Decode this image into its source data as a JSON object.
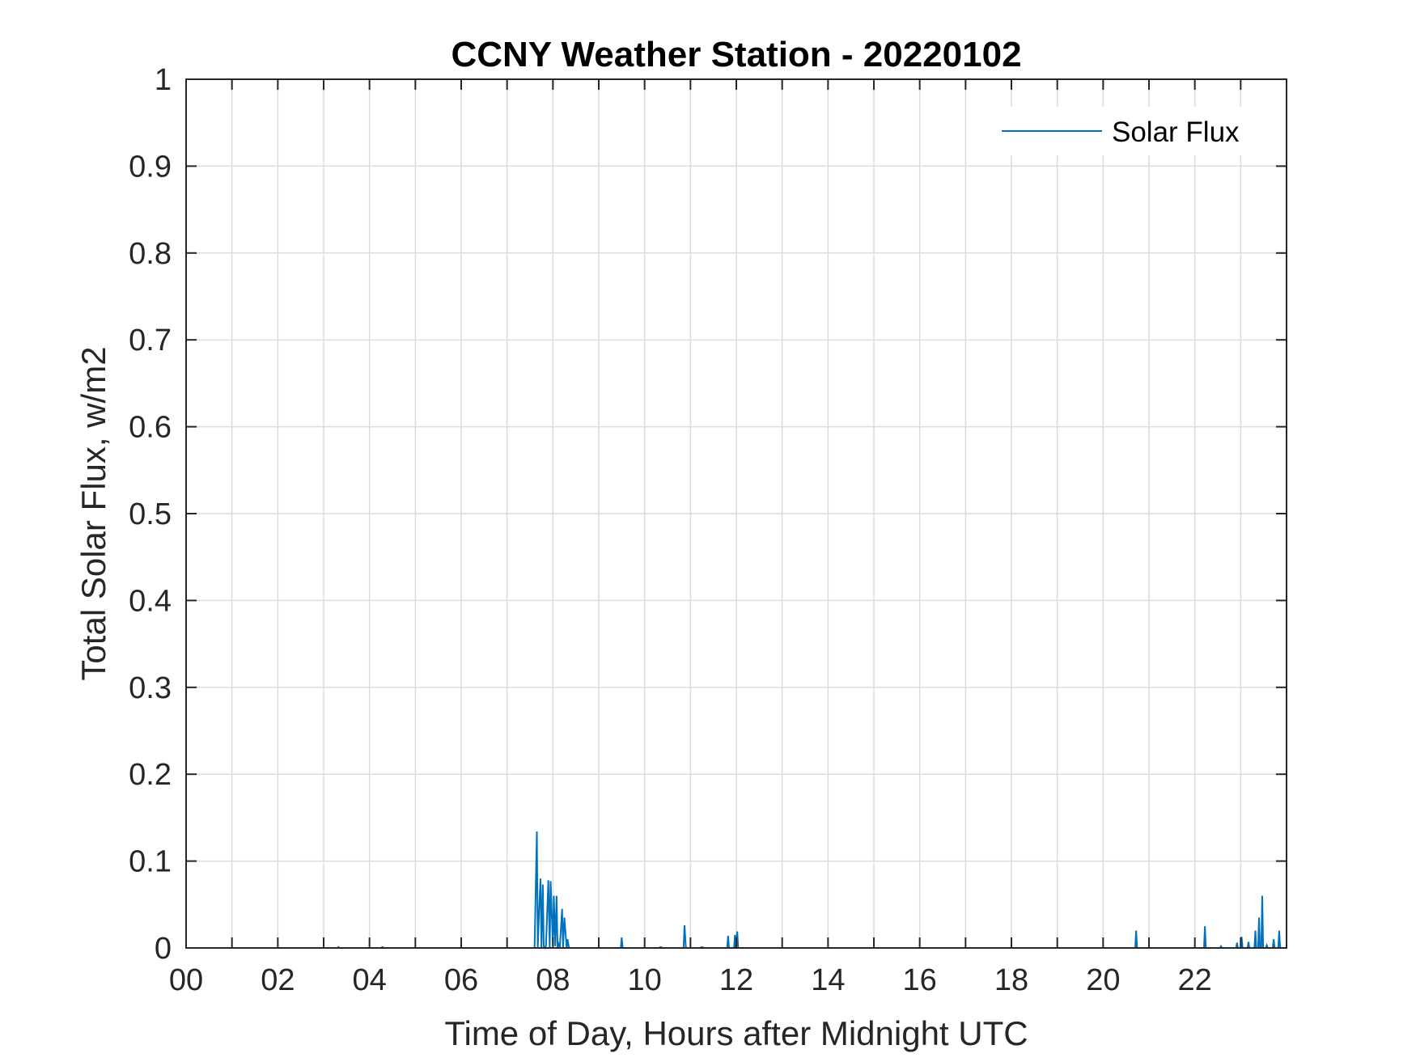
{
  "chart_data": {
    "type": "line",
    "title": "CCNY Weather Station - 20220102",
    "xlabel": "Time of Day, Hours after Midnight UTC",
    "ylabel": "Total Solar Flux, w/m2",
    "xlim": [
      0,
      24
    ],
    "ylim": [
      0,
      1
    ],
    "x_ticks": [
      0,
      2,
      4,
      6,
      8,
      10,
      12,
      14,
      16,
      18,
      20,
      22
    ],
    "x_tick_labels": [
      "00",
      "02",
      "04",
      "06",
      "08",
      "10",
      "12",
      "14",
      "16",
      "18",
      "20",
      "22"
    ],
    "y_ticks": [
      0,
      0.1,
      0.2,
      0.3,
      0.4,
      0.5,
      0.6,
      0.7,
      0.8,
      0.9,
      1
    ],
    "y_tick_labels": [
      "0",
      "0.1",
      "0.2",
      "0.3",
      "0.4",
      "0.5",
      "0.6",
      "0.7",
      "0.8",
      "0.9",
      "1"
    ],
    "grid": true,
    "legend_position": "top-right",
    "series": [
      {
        "name": "Solar Flux",
        "color": "#0072BD",
        "x": [
          0,
          3.3,
          3.32,
          3.35,
          4.25,
          4.28,
          4.32,
          7.6,
          7.65,
          7.67,
          7.7,
          7.73,
          7.75,
          7.78,
          7.8,
          7.83,
          7.85,
          7.9,
          7.93,
          7.95,
          8.0,
          8.02,
          8.05,
          8.08,
          8.1,
          8.12,
          8.15,
          8.2,
          8.22,
          8.25,
          8.3,
          8.32,
          8.35,
          8.37,
          8.4,
          8.45,
          9.48,
          9.5,
          9.52,
          10.3,
          10.35,
          10.4,
          10.85,
          10.87,
          10.9,
          11.2,
          11.25,
          11.3,
          11.8,
          11.82,
          11.84,
          11.95,
          11.97,
          11.99,
          12.02,
          12.04,
          12.06,
          20.7,
          20.72,
          20.74,
          22.2,
          22.22,
          22.24,
          22.55,
          22.57,
          22.59,
          22.9,
          22.92,
          22.94,
          23.0,
          23.02,
          23.04,
          23.15,
          23.17,
          23.19,
          23.3,
          23.32,
          23.34,
          23.38,
          23.4,
          23.42,
          23.45,
          23.47,
          23.49,
          23.55,
          23.57,
          23.59,
          23.7,
          23.72,
          23.74,
          23.82,
          23.84,
          23.86,
          24
        ],
        "y": [
          0,
          0,
          0.001,
          0,
          0,
          0.001,
          0,
          0,
          0.134,
          0,
          0.045,
          0.08,
          0,
          0.073,
          0.002,
          0,
          0.003,
          0.078,
          0,
          0.077,
          0.003,
          0.06,
          0.002,
          0.06,
          0.001,
          0.005,
          0,
          0.045,
          0,
          0.035,
          0,
          0.01,
          0,
          0,
          0,
          0,
          0,
          0.012,
          0,
          0,
          0.001,
          0,
          0,
          0.026,
          0,
          0,
          0.001,
          0,
          0,
          0.014,
          0,
          0,
          0.015,
          0,
          0.019,
          0,
          0,
          0,
          0.02,
          0,
          0,
          0.025,
          0,
          0,
          0.002,
          0,
          0,
          0.006,
          0,
          0,
          0.013,
          0,
          0,
          0.007,
          0,
          0,
          0.02,
          0,
          0,
          0.035,
          0,
          0,
          0.06,
          0,
          0,
          0.003,
          0,
          0,
          0.01,
          0,
          0,
          0.02,
          0,
          0
        ]
      }
    ]
  }
}
